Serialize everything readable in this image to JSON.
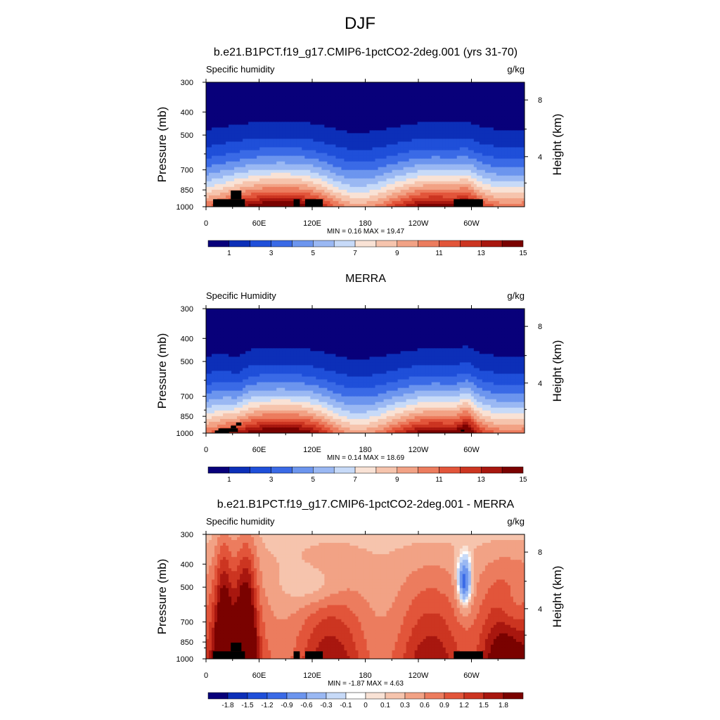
{
  "figure": {
    "season_title": "DJF"
  },
  "colors": {
    "abs_palette": [
      "#08007a",
      "#0c2fb8",
      "#1f4fd9",
      "#3a6ae6",
      "#6c95ee",
      "#9ab8f3",
      "#c7daf8",
      "#f9e2d5",
      "#f6c4ad",
      "#f2a285",
      "#ec7c5e",
      "#e2553a",
      "#cc3521",
      "#a8170f",
      "#7a0200"
    ],
    "diff_palette": [
      "#08007a",
      "#0c2fb8",
      "#1f4fd9",
      "#3a6ae6",
      "#6c95ee",
      "#9ab8f3",
      "#c7daf8",
      "#ffffff",
      "#f9e2d5",
      "#f6c4ad",
      "#f2a285",
      "#ec7c5e",
      "#e2553a",
      "#cc3521",
      "#a8170f",
      "#7a0200"
    ],
    "terrain": "#000000"
  },
  "chart_data": [
    {
      "type": "heatmap",
      "title": "b.e21.B1PCT.f19_g17.CMIP6-1pctCO2-2deg.001 (yrs 31-70)",
      "left_label": "Specific humidity",
      "right_label": "g/kg",
      "ylabel": "Pressure (mb)",
      "ylabel_right": "Height (km)",
      "y_ticks": [
        "300",
        "400",
        "500",
        "700",
        "850",
        "1000"
      ],
      "y_tick_values": [
        300,
        400,
        500,
        700,
        850,
        1000
      ],
      "ylim": [
        300,
        1000
      ],
      "y2_ticks": [
        "8",
        "4"
      ],
      "y2_tick_values": [
        8,
        4
      ],
      "x_ticks": [
        "0",
        "60E",
        "120E",
        "180",
        "120W",
        "60W"
      ],
      "x_tick_values": [
        0,
        60,
        120,
        180,
        240,
        300
      ],
      "xlim": [
        0,
        360
      ],
      "stats": "MIN =   0.16  MAX =  19.47",
      "colorbar_labels": [
        "1",
        "3",
        "5",
        "7",
        "9",
        "11",
        "13",
        "15"
      ],
      "colorbar_levels": [
        0.5,
        1,
        2,
        3,
        4,
        5,
        6,
        7,
        8,
        9,
        10,
        11,
        12,
        13,
        14,
        15,
        16
      ],
      "field_kind": "model"
    },
    {
      "type": "heatmap",
      "title": "MERRA",
      "left_label": "Specific Humidity",
      "right_label": "g/kg",
      "ylabel": "Pressure (mb)",
      "ylabel_right": "Height (km)",
      "y_ticks": [
        "300",
        "400",
        "500",
        "700",
        "850",
        "1000"
      ],
      "y_tick_values": [
        300,
        400,
        500,
        700,
        850,
        1000
      ],
      "ylim": [
        300,
        1000
      ],
      "y2_ticks": [
        "8",
        "4"
      ],
      "y2_tick_values": [
        8,
        4
      ],
      "x_ticks": [
        "0",
        "60E",
        "120E",
        "180",
        "120W",
        "60W"
      ],
      "x_tick_values": [
        0,
        60,
        120,
        180,
        240,
        300
      ],
      "xlim": [
        0,
        360
      ],
      "stats": "MIN =   0.14  MAX =  18.69",
      "colorbar_labels": [
        "1",
        "3",
        "5",
        "7",
        "9",
        "11",
        "13",
        "15"
      ],
      "colorbar_levels": [
        0.5,
        1,
        2,
        3,
        4,
        5,
        6,
        7,
        8,
        9,
        10,
        11,
        12,
        13,
        14,
        15,
        16
      ],
      "field_kind": "obs"
    },
    {
      "type": "heatmap",
      "title": "b.e21.B1PCT.f19_g17.CMIP6-1pctCO2-2deg.001 - MERRA",
      "left_label": "Specific humidity",
      "right_label": "g/kg",
      "ylabel": "Pressure (mb)",
      "ylabel_right": "Height (km)",
      "y_ticks": [
        "300",
        "400",
        "500",
        "700",
        "850",
        "1000"
      ],
      "y_tick_values": [
        300,
        400,
        500,
        700,
        850,
        1000
      ],
      "ylim": [
        300,
        1000
      ],
      "y2_ticks": [
        "8",
        "4"
      ],
      "y2_tick_values": [
        8,
        4
      ],
      "x_ticks": [
        "0",
        "60E",
        "120E",
        "180",
        "120W",
        "60W"
      ],
      "x_tick_values": [
        0,
        60,
        120,
        180,
        240,
        300
      ],
      "xlim": [
        0,
        360
      ],
      "stats": "MIN =  -1.87  MAX =   4.63",
      "colorbar_labels": [
        "-1.8",
        "-1.5",
        "-1.2",
        "-0.9",
        "-0.6",
        "-0.3",
        "-0.1",
        "0",
        "0.1",
        "0.3",
        "0.6",
        "0.9",
        "1.2",
        "1.5",
        "1.8"
      ],
      "colorbar_levels": [
        -1.8,
        -1.5,
        -1.2,
        -0.9,
        -0.6,
        -0.3,
        -0.1,
        0,
        0.1,
        0.3,
        0.6,
        0.9,
        1.2,
        1.5,
        1.8
      ],
      "field_kind": "diff"
    }
  ]
}
